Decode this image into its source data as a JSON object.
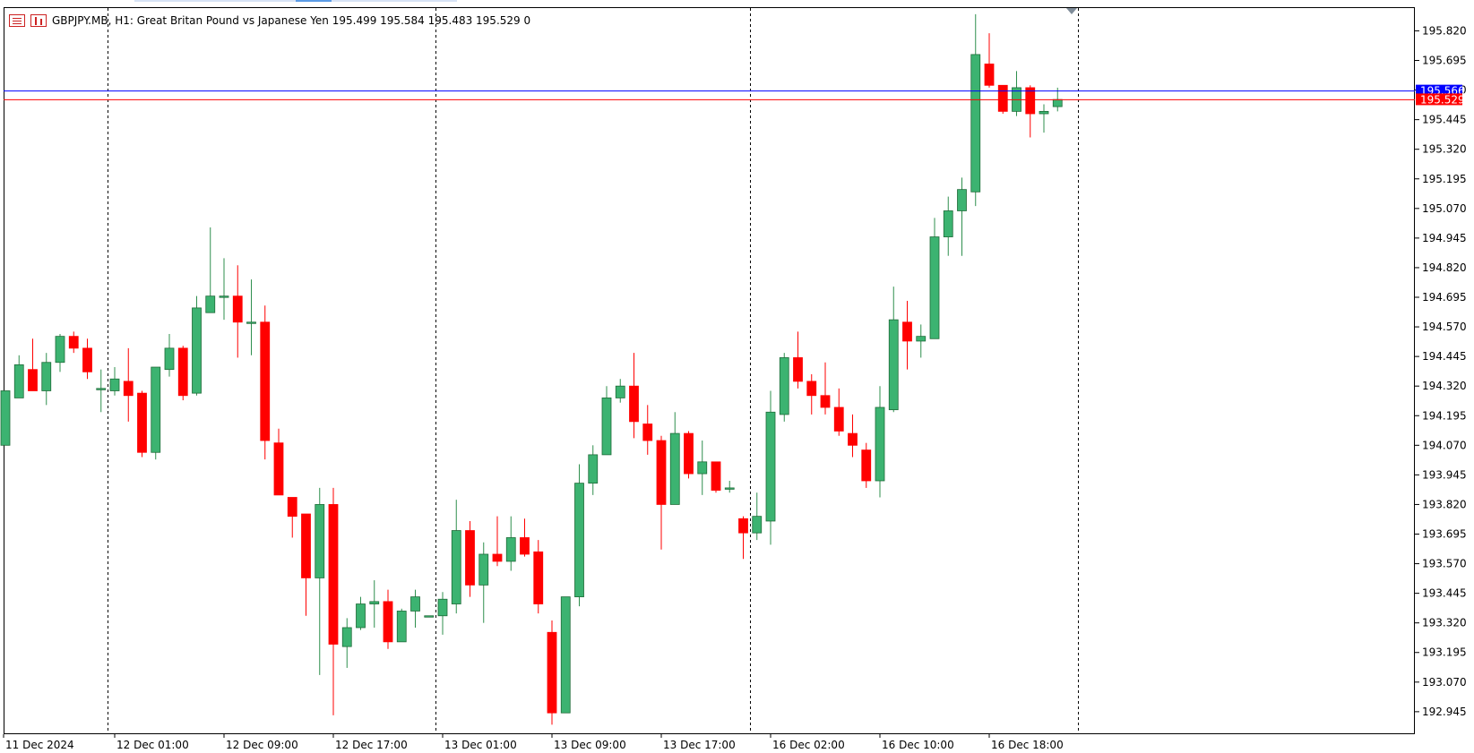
{
  "header": {
    "symbol_text": "GBPJPY.MB, H1:  Great Britan Pound vs Japanese Yen  195.499 195.584 195.483 195.529  0"
  },
  "colors": {
    "bull": "#3cb371",
    "bear": "#ff0000",
    "bid_line": "#0000ff",
    "ask_line": "#ff0000",
    "grid_separator": "#000000"
  },
  "chart_data": {
    "type": "candlestick",
    "symbol": "GBPJPY.MB",
    "timeframe": "H1",
    "bid_price": "195.566",
    "last_price": "195.529",
    "y_ticks": [
      "195.820",
      "195.695",
      "195.570",
      "195.445",
      "195.320",
      "195.195",
      "195.070",
      "194.945",
      "194.820",
      "194.695",
      "194.570",
      "194.445",
      "194.320",
      "194.195",
      "194.070",
      "193.945",
      "193.820",
      "193.695",
      "193.570",
      "193.445",
      "193.320",
      "193.195",
      "193.070",
      "192.945"
    ],
    "x_ticks": [
      {
        "label": "11 Dec 2024",
        "bar": 0
      },
      {
        "label": "12 Dec 01:00",
        "bar": 8
      },
      {
        "label": "12 Dec 09:00",
        "bar": 16
      },
      {
        "label": "12 Dec 17:00",
        "bar": 24
      },
      {
        "label": "13 Dec 01:00",
        "bar": 32
      },
      {
        "label": "13 Dec 09:00",
        "bar": 40
      },
      {
        "label": "13 Dec 17:00",
        "bar": 48
      },
      {
        "label": "16 Dec 02:00",
        "bar": 56
      },
      {
        "label": "16 Dec 10:00",
        "bar": 64
      },
      {
        "label": "16 Dec 18:00",
        "bar": 72
      }
    ],
    "day_separators": [
      7,
      31,
      54,
      78
    ],
    "ylim": [
      192.85,
      195.92
    ],
    "candles": [
      [
        194.07,
        194.3,
        194.3,
        194.07
      ],
      [
        194.27,
        194.41,
        194.45,
        194.27
      ],
      [
        194.39,
        194.3,
        194.52,
        194.3
      ],
      [
        194.3,
        194.42,
        194.46,
        194.24
      ],
      [
        194.42,
        194.53,
        194.54,
        194.38
      ],
      [
        194.53,
        194.48,
        194.55,
        194.46
      ],
      [
        194.48,
        194.38,
        194.52,
        194.35
      ],
      [
        194.31,
        194.31,
        194.39,
        194.21
      ],
      [
        194.3,
        194.35,
        194.4,
        194.28
      ],
      [
        194.34,
        194.28,
        194.48,
        194.17
      ],
      [
        194.29,
        194.04,
        194.3,
        194.02
      ],
      [
        194.04,
        194.4,
        194.4,
        194.01
      ],
      [
        194.39,
        194.48,
        194.54,
        194.36
      ],
      [
        194.48,
        194.28,
        194.49,
        194.26
      ],
      [
        194.29,
        194.65,
        194.7,
        194.28
      ],
      [
        194.63,
        194.7,
        194.99,
        194.63
      ],
      [
        194.7,
        194.7,
        194.86,
        194.6
      ],
      [
        194.7,
        194.59,
        194.83,
        194.44
      ],
      [
        194.59,
        194.59,
        194.77,
        194.45
      ],
      [
        194.59,
        194.09,
        194.66,
        194.01
      ],
      [
        194.08,
        193.86,
        194.14,
        193.86
      ],
      [
        193.85,
        193.77,
        193.85,
        193.68
      ],
      [
        193.78,
        193.51,
        193.78,
        193.35
      ],
      [
        193.51,
        193.82,
        193.89,
        193.1
      ],
      [
        193.82,
        193.23,
        193.89,
        192.93
      ],
      [
        193.22,
        193.3,
        193.34,
        193.13
      ],
      [
        193.3,
        193.4,
        193.43,
        193.29
      ],
      [
        193.4,
        193.41,
        193.5,
        193.3
      ],
      [
        193.41,
        193.24,
        193.46,
        193.21
      ],
      [
        193.24,
        193.37,
        193.38,
        193.26
      ],
      [
        193.37,
        193.43,
        193.46,
        193.3
      ],
      [
        193.35,
        193.35,
        193.35,
        193.35
      ],
      [
        193.35,
        193.42,
        193.45,
        193.27
      ],
      [
        193.4,
        193.71,
        193.84,
        193.36
      ],
      [
        193.71,
        193.48,
        193.75,
        193.43
      ],
      [
        193.48,
        193.61,
        193.66,
        193.32
      ],
      [
        193.61,
        193.58,
        193.77,
        193.56
      ],
      [
        193.58,
        193.68,
        193.77,
        193.54
      ],
      [
        193.68,
        193.61,
        193.76,
        193.6
      ],
      [
        193.62,
        193.4,
        193.67,
        193.36
      ],
      [
        193.28,
        192.94,
        193.33,
        192.89
      ],
      [
        192.94,
        193.43,
        193.43,
        192.94
      ],
      [
        193.43,
        193.91,
        193.99,
        193.39
      ],
      [
        193.91,
        194.03,
        194.07,
        193.86
      ],
      [
        194.03,
        194.27,
        194.32,
        194.03
      ],
      [
        194.27,
        194.32,
        194.35,
        194.25
      ],
      [
        194.32,
        194.17,
        194.46,
        194.1
      ],
      [
        194.16,
        194.09,
        194.24,
        194.03
      ],
      [
        194.09,
        193.82,
        194.11,
        193.63
      ],
      [
        193.82,
        194.12,
        194.21,
        193.82
      ],
      [
        194.12,
        193.95,
        194.13,
        193.93
      ],
      [
        193.95,
        194.0,
        194.09,
        193.86
      ],
      [
        194.0,
        193.88,
        194.0,
        193.87
      ],
      [
        193.89,
        193.89,
        193.92,
        193.87
      ],
      [
        193.76,
        193.7,
        193.77,
        193.59
      ],
      [
        193.7,
        193.77,
        193.87,
        193.67
      ],
      [
        193.75,
        194.21,
        194.3,
        193.65
      ],
      [
        194.2,
        194.44,
        194.46,
        194.17
      ],
      [
        194.44,
        194.34,
        194.55,
        194.31
      ],
      [
        194.34,
        194.28,
        194.37,
        194.2
      ],
      [
        194.28,
        194.23,
        194.42,
        194.2
      ],
      [
        194.23,
        194.13,
        194.31,
        194.11
      ],
      [
        194.12,
        194.07,
        194.2,
        194.02
      ],
      [
        194.05,
        193.92,
        194.08,
        193.89
      ],
      [
        193.92,
        194.23,
        194.32,
        193.85
      ],
      [
        194.22,
        194.6,
        194.74,
        194.21
      ],
      [
        194.59,
        194.51,
        194.68,
        194.39
      ],
      [
        194.51,
        194.53,
        194.58,
        194.44
      ],
      [
        194.52,
        194.95,
        195.03,
        194.52
      ],
      [
        194.95,
        195.06,
        195.12,
        194.87
      ],
      [
        195.06,
        195.15,
        195.2,
        194.87
      ],
      [
        195.14,
        195.72,
        195.89,
        195.08
      ],
      [
        195.68,
        195.59,
        195.81,
        195.58
      ],
      [
        195.59,
        195.48,
        195.59,
        195.47
      ],
      [
        195.48,
        195.58,
        195.65,
        195.46
      ],
      [
        195.58,
        195.47,
        195.59,
        195.37
      ],
      [
        195.47,
        195.48,
        195.51,
        195.39
      ],
      [
        195.5,
        195.53,
        195.58,
        195.48
      ]
    ]
  }
}
